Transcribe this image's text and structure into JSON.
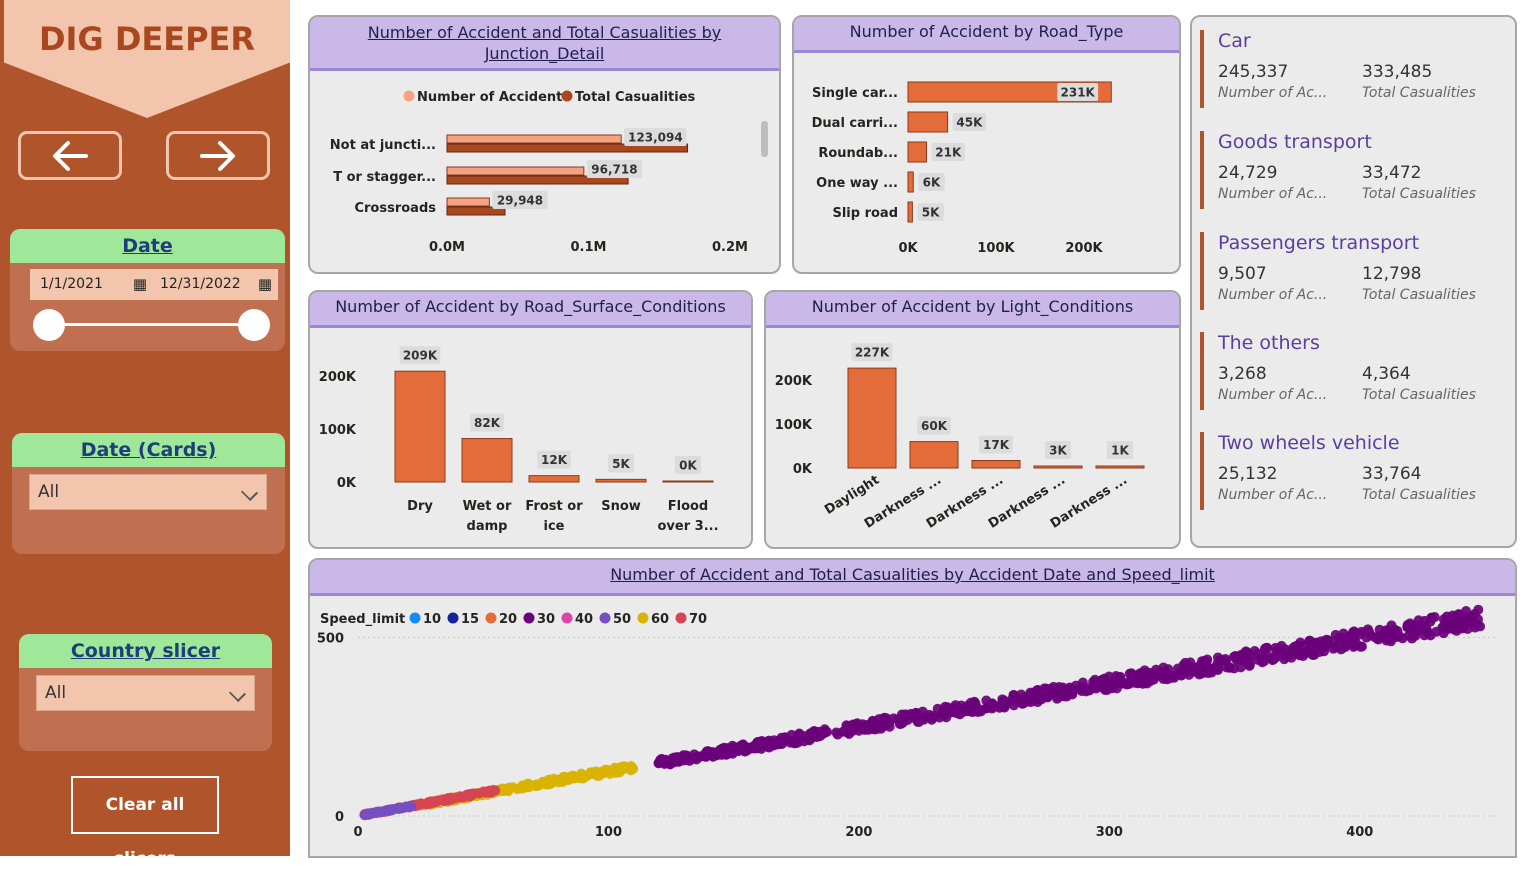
{
  "header": {
    "title": "DIG DEEPER"
  },
  "nav": {
    "back_icon": "arrow-left-icon",
    "forward_icon": "arrow-right-icon"
  },
  "date_slicer": {
    "title": "Date",
    "start": "1/1/2021",
    "end": "12/31/2022",
    "calendar_icon": "calendar-icon"
  },
  "date_cards_slicer": {
    "title": "Date (Cards)",
    "value": "All"
  },
  "country_slicer": {
    "title": "Country slicer",
    "value": "All"
  },
  "clear_label": "Clear all slicers",
  "colors": {
    "accent": "#B0542B",
    "bar": "#E46C3A",
    "bar_light": "#F4A282",
    "bar_dark": "#A9471F",
    "header_bg": "#C9B8E8"
  },
  "cards": [
    {
      "name": "Car",
      "accidents": "245,337",
      "casualties": "333,485",
      "acc_label": "Number of Ac...",
      "cas_label": "Total Casualities"
    },
    {
      "name": "Goods transport",
      "accidents": "24,729",
      "casualties": "33,472",
      "acc_label": "Number of Ac...",
      "cas_label": "Total Casualities"
    },
    {
      "name": "Passengers transport",
      "accidents": "9,507",
      "casualties": "12,798",
      "acc_label": "Number of Ac...",
      "cas_label": "Total Casualities"
    },
    {
      "name": "The others",
      "accidents": "3,268",
      "casualties": "4,364",
      "acc_label": "Number of Ac...",
      "cas_label": "Total Casualities"
    },
    {
      "name": "Two wheels vehicle",
      "accidents": "25,132",
      "casualties": "33,764",
      "acc_label": "Number of Ac...",
      "cas_label": "Total Casualities"
    }
  ],
  "chart_data": [
    {
      "id": "junction",
      "type": "bar",
      "title": "Number of Accident and Total Casualities by Junction_Detail",
      "categories": [
        "Not at juncti...",
        "T or stagger...",
        "Crossroads"
      ],
      "series": [
        {
          "name": "Number of Accident",
          "values": [
            123094,
            96718,
            29948
          ],
          "color": "#F4A282"
        },
        {
          "name": "Total Casualities",
          "values": [
            170000,
            128000,
            41000
          ],
          "color": "#A9471F"
        }
      ],
      "data_labels": [
        "123,094",
        "96,718",
        "29,948"
      ],
      "xlim": [
        0,
        200000
      ],
      "xticks": [
        "0.0M",
        "0.1M",
        "0.2M"
      ],
      "legend": "top"
    },
    {
      "id": "roadtype",
      "type": "bar",
      "title": "Number of Accident by Road_Type",
      "categories": [
        "Single car...",
        "Dual carri...",
        "Roundab...",
        "One way ...",
        "Slip road"
      ],
      "values": [
        231000,
        45000,
        21000,
        6000,
        5000
      ],
      "data_labels": [
        "231K",
        "45K",
        "21K",
        "6K",
        "5K"
      ],
      "xlim": [
        0,
        231000
      ],
      "xticks": [
        "0K",
        "100K",
        "200K"
      ]
    },
    {
      "id": "surface",
      "type": "bar",
      "title": "Number of Accident by Road_Surface_Conditions",
      "categories": [
        [
          "Dry"
        ],
        [
          "Wet or",
          "damp"
        ],
        [
          "Frost or",
          "ice"
        ],
        [
          "Snow"
        ],
        [
          "Flood",
          "over 3..."
        ]
      ],
      "values": [
        209000,
        82000,
        12000,
        5000,
        0
      ],
      "data_labels": [
        "209K",
        "82K",
        "12K",
        "5K",
        "0K"
      ],
      "ylim": [
        0,
        200000
      ],
      "yticks": [
        "0K",
        "100K",
        "200K"
      ]
    },
    {
      "id": "light",
      "type": "bar",
      "title": "Number of Accident by Light_Conditions",
      "categories": [
        "Daylight",
        "Darkness ...",
        "Darkness ...",
        "Darkness ...",
        "Darkness ..."
      ],
      "values": [
        227000,
        60000,
        17000,
        3000,
        1000
      ],
      "data_labels": [
        "227K",
        "60K",
        "17K",
        "3K",
        "1K"
      ],
      "ylim": [
        0,
        200000
      ],
      "yticks": [
        "0K",
        "100K",
        "200K"
      ]
    },
    {
      "id": "scatter",
      "type": "scatter",
      "title": "Number of Accident and Total Casualities by Accident Date and Speed_limit",
      "legend_title": "Speed_limit",
      "series": [
        {
          "name": "10",
          "color": "#118DFF"
        },
        {
          "name": "15",
          "color": "#12239E"
        },
        {
          "name": "20",
          "color": "#E66C37"
        },
        {
          "name": "30",
          "color": "#6B007B"
        },
        {
          "name": "40",
          "color": "#E044A7"
        },
        {
          "name": "50",
          "color": "#744EC2"
        },
        {
          "name": "60",
          "color": "#D9B300"
        },
        {
          "name": "70",
          "color": "#D64550"
        }
      ],
      "xlim": [
        0,
        450
      ],
      "ylim": [
        0,
        560
      ],
      "xticks": [
        0,
        100,
        200,
        300,
        400
      ],
      "yticks": [
        0,
        500
      ],
      "clusters": [
        {
          "series": "30",
          "x_range": [
            120,
            450
          ],
          "slope": 1.24,
          "spread": 10
        },
        {
          "series": "60",
          "x_range": [
            25,
            110
          ],
          "slope": 1.25,
          "spread": 9
        },
        {
          "series": "70",
          "x_range": [
            2,
            55
          ],
          "slope": 1.3,
          "spread": 6
        },
        {
          "series": "50",
          "x_range": [
            2,
            22
          ],
          "slope": 1.3,
          "spread": 4
        }
      ]
    }
  ]
}
